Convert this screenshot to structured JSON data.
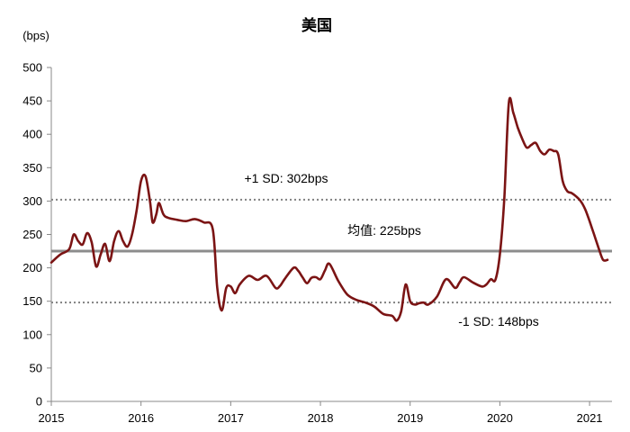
{
  "chart_data": {
    "type": "line",
    "title": "美国",
    "ylabel": "(bps)",
    "xlabel": "",
    "ylim": [
      0,
      500
    ],
    "xlim": [
      2015.0,
      2021.25
    ],
    "y_ticks": [
      0,
      50,
      100,
      150,
      200,
      250,
      300,
      350,
      400,
      450,
      500
    ],
    "x_ticks": [
      2015,
      2016,
      2017,
      2018,
      2019,
      2020,
      2021
    ],
    "grid": false,
    "line_color": "#7b1414",
    "reference_lines": [
      {
        "label": "+1 SD:   302bps",
        "value": 302,
        "style": "dotted",
        "color": "#808080"
      },
      {
        "label": "均值: 225bps",
        "value": 225,
        "style": "solid",
        "color": "#8c8c8c"
      },
      {
        "label": "-1 SD:   148bps",
        "value": 148,
        "style": "dotted",
        "color": "#808080"
      }
    ],
    "series": [
      {
        "x": [
          2015.0,
          2015.1,
          2015.2,
          2015.25,
          2015.3,
          2015.35,
          2015.4,
          2015.45,
          2015.5,
          2015.55,
          2015.6,
          2015.65,
          2015.7,
          2015.75,
          2015.8,
          2015.85,
          2015.9,
          2015.95,
          2016.0,
          2016.05,
          2016.1,
          2016.13,
          2016.17,
          2016.2,
          2016.25,
          2016.3,
          2016.4,
          2016.5,
          2016.6,
          2016.7,
          2016.8,
          2016.85,
          2016.9,
          2016.95,
          2017.0,
          2017.05,
          2017.1,
          2017.2,
          2017.3,
          2017.4,
          2017.5,
          2017.55,
          2017.6,
          2017.7,
          2017.75,
          2017.8,
          2017.85,
          2017.9,
          2017.95,
          2018.0,
          2018.05,
          2018.1,
          2018.2,
          2018.3,
          2018.4,
          2018.5,
          2018.6,
          2018.7,
          2018.8,
          2018.85,
          2018.9,
          2018.95,
          2019.0,
          2019.05,
          2019.1,
          2019.15,
          2019.2,
          2019.3,
          2019.4,
          2019.5,
          2019.55,
          2019.6,
          2019.7,
          2019.8,
          2019.85,
          2019.9,
          2019.95,
          2020.0,
          2020.05,
          2020.1,
          2020.15,
          2020.2,
          2020.25,
          2020.3,
          2020.35,
          2020.4,
          2020.45,
          2020.5,
          2020.55,
          2020.6,
          2020.65,
          2020.7,
          2020.75,
          2020.8,
          2020.85,
          2020.9,
          2020.95,
          2021.0,
          2021.05,
          2021.1,
          2021.15,
          2021.2
        ],
        "y": [
          208,
          220,
          228,
          250,
          240,
          235,
          252,
          238,
          202,
          220,
          236,
          210,
          240,
          255,
          240,
          232,
          250,
          285,
          330,
          337,
          300,
          268,
          280,
          297,
          280,
          275,
          272,
          270,
          273,
          268,
          258,
          170,
          136,
          170,
          172,
          162,
          175,
          188,
          182,
          188,
          170,
          173,
          183,
          200,
          196,
          186,
          177,
          185,
          186,
          183,
          196,
          206,
          180,
          160,
          152,
          148,
          142,
          131,
          128,
          121,
          135,
          175,
          150,
          145,
          147,
          148,
          145,
          157,
          183,
          170,
          178,
          186,
          178,
          172,
          175,
          183,
          182,
          220,
          305,
          447,
          432,
          410,
          393,
          380,
          384,
          387,
          375,
          370,
          377,
          375,
          370,
          330,
          315,
          312,
          307,
          300,
          288,
          270,
          250,
          230,
          212,
          212
        ]
      }
    ]
  }
}
